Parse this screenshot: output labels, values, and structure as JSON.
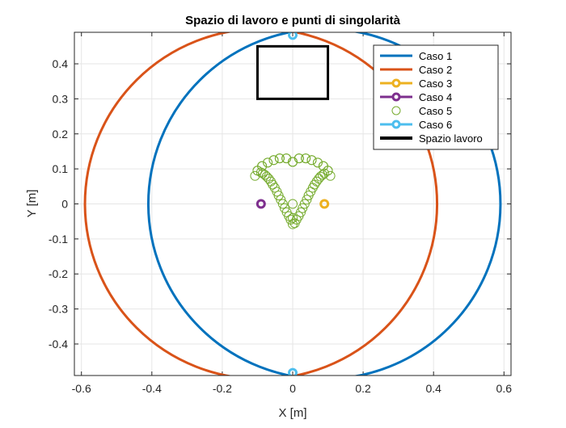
{
  "chart_data": {
    "type": "line",
    "title": "Spazio di lavoro e punti di singolarità",
    "xlabel": "X [m]",
    "ylabel": "Y [m]",
    "xlim": [
      -0.62,
      0.62
    ],
    "ylim": [
      -0.49,
      0.49
    ],
    "xticks": [
      -0.6,
      -0.4,
      -0.2,
      0,
      0.2,
      0.4,
      0.6
    ],
    "yticks": [
      -0.4,
      -0.3,
      -0.2,
      -0.1,
      0,
      0.1,
      0.2,
      0.3,
      0.4
    ],
    "grid": true,
    "legend_position": "top-right",
    "series": [
      {
        "name": "Caso 1",
        "kind": "circle",
        "color": "#0072BD",
        "center": [
          0.09,
          0
        ],
        "radius": 0.5
      },
      {
        "name": "Caso 2",
        "kind": "circle",
        "color": "#D95319",
        "center": [
          -0.09,
          0
        ],
        "radius": 0.5
      },
      {
        "name": "Caso 3",
        "kind": "markers",
        "marker": "o",
        "color": "#EDB120",
        "x": [
          0.09
        ],
        "y": [
          0
        ]
      },
      {
        "name": "Caso 4",
        "kind": "markers",
        "marker": "o",
        "color": "#7E2F8E",
        "x": [
          -0.09
        ],
        "y": [
          0
        ]
      },
      {
        "name": "Caso 5",
        "kind": "markers",
        "marker": "o",
        "color": "#77AC30",
        "x": [
          0,
          0.018,
          0.037,
          0.054,
          0.071,
          0.087,
          0.1,
          0.107,
          0.1,
          0.087,
          0.071,
          0.054,
          0.037,
          0.018,
          0,
          -0.018,
          -0.037,
          -0.054,
          -0.071,
          -0.087,
          -0.1,
          -0.107,
          -0.1,
          -0.087,
          -0.071,
          -0.054,
          -0.037,
          -0.018,
          0,
          0.006,
          0.011,
          0.017,
          0.023,
          0.028,
          0.034,
          0.04,
          0.045,
          0.051,
          0.057,
          0.062,
          0.068,
          0.074,
          0.079,
          0.085,
          0.09,
          -0.006,
          -0.011,
          -0.017,
          -0.023,
          -0.028,
          -0.034,
          -0.04,
          -0.045,
          -0.051,
          -0.057,
          -0.062,
          -0.068,
          -0.074,
          -0.079,
          -0.085,
          -0.09,
          0,
          0,
          0
        ],
        "y": [
          0.12,
          0.13,
          0.13,
          0.125,
          0.118,
          0.108,
          0.095,
          0.08,
          0.095,
          0.108,
          0.118,
          0.125,
          0.13,
          0.13,
          0.12,
          0.13,
          0.13,
          0.125,
          0.118,
          0.108,
          0.095,
          0.08,
          0.095,
          0.108,
          0.118,
          0.125,
          0.13,
          0.13,
          0.12,
          -0.055,
          -0.045,
          -0.035,
          -0.024,
          -0.012,
          0,
          0.012,
          0.024,
          0.035,
          0.046,
          0.055,
          0.064,
          0.072,
          0.078,
          0.083,
          0.087,
          -0.045,
          -0.035,
          -0.024,
          -0.012,
          0,
          0.012,
          0.024,
          0.035,
          0.046,
          0.055,
          0.064,
          0.072,
          0.078,
          0.083,
          0.087,
          0.09,
          -0.058,
          -0.04,
          0.0
        ]
      },
      {
        "name": "Caso 6",
        "kind": "markers",
        "marker": "o",
        "color": "#4DBEEE",
        "x": [
          0,
          0
        ],
        "y": [
          0.4822,
          -0.4822
        ]
      },
      {
        "name": "Spazio lavoro",
        "kind": "rectangle",
        "color": "#000000",
        "x": [
          -0.1,
          0.1
        ],
        "y": [
          0.3,
          0.45
        ]
      }
    ]
  }
}
